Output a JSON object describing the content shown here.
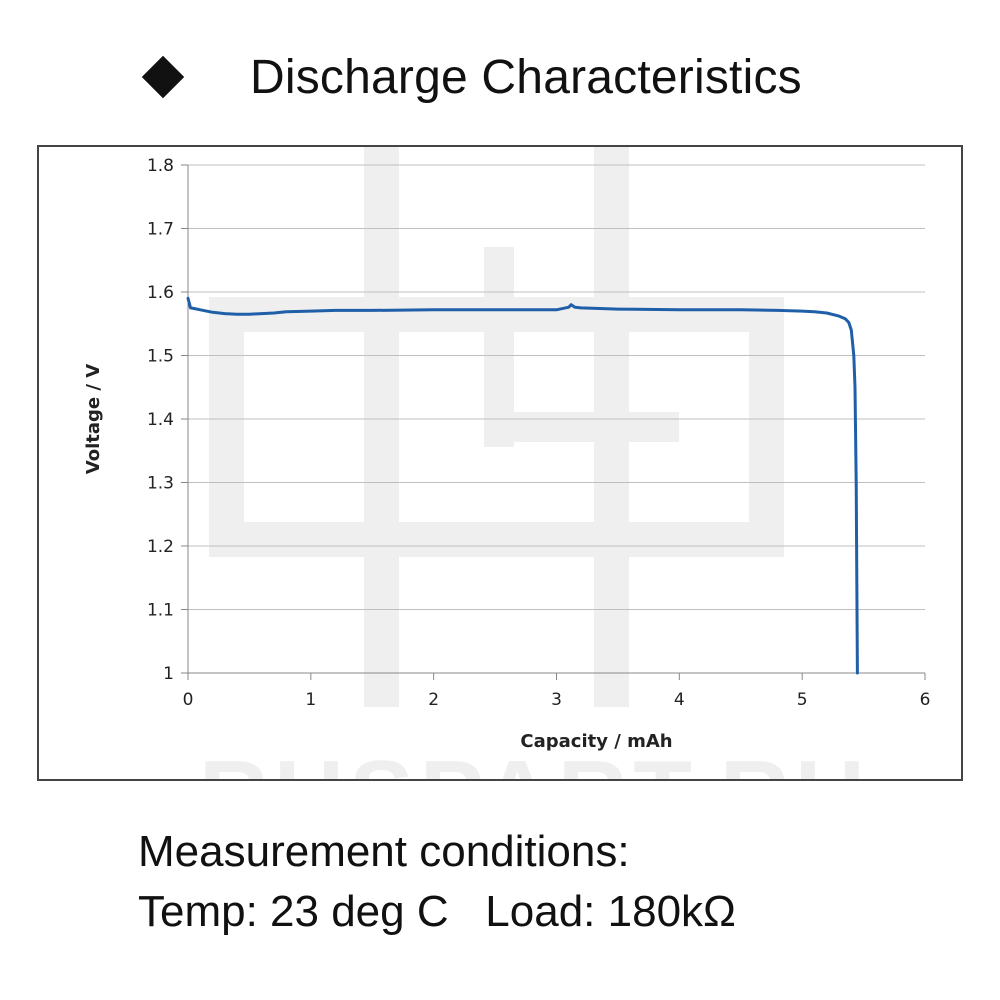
{
  "header": {
    "bullet_icon": "diamond-icon",
    "title": "Discharge Characteristics"
  },
  "watermark": {
    "text": "RUSPART.RU"
  },
  "conditions": {
    "line1": "Measurement conditions:",
    "line2": "Temp: 23 deg C   Load: 180kΩ"
  },
  "colors": {
    "series": "#1f5fa8",
    "grid": "#bfbfbf",
    "axis": "#888888",
    "watermark": "#efefef"
  },
  "chart_data": {
    "type": "line",
    "title": "",
    "xlabel": "Capacity  /  mAh",
    "ylabel": "Voltage  /  V",
    "xlim": [
      0,
      6
    ],
    "ylim": [
      1.0,
      1.8
    ],
    "xticks": [
      "0",
      "1",
      "2",
      "3",
      "4",
      "5",
      "6"
    ],
    "yticks": [
      "1",
      "1.1",
      "1.2",
      "1.3",
      "1.4",
      "1.5",
      "1.6",
      "1.7",
      "1.8"
    ],
    "grid": "horizontal",
    "legend": "none",
    "series": [
      {
        "x": [
          0.0,
          0.02,
          0.05,
          0.1,
          0.2,
          0.3,
          0.4,
          0.5,
          0.6,
          0.7,
          0.8,
          1.0,
          1.2,
          1.5,
          2.0,
          2.5,
          3.0,
          3.1,
          3.12,
          3.15,
          3.2,
          3.5,
          4.0,
          4.5,
          4.8,
          5.0,
          5.1,
          5.2,
          5.3,
          5.35,
          5.38,
          5.4,
          5.42,
          5.43,
          5.44,
          5.45
        ],
        "y": [
          1.59,
          1.575,
          1.574,
          1.572,
          1.568,
          1.566,
          1.565,
          1.565,
          1.566,
          1.567,
          1.569,
          1.57,
          1.571,
          1.571,
          1.572,
          1.572,
          1.572,
          1.576,
          1.58,
          1.576,
          1.575,
          1.573,
          1.572,
          1.572,
          1.571,
          1.57,
          1.569,
          1.567,
          1.562,
          1.558,
          1.552,
          1.54,
          1.5,
          1.45,
          1.3,
          1.0
        ]
      }
    ]
  }
}
